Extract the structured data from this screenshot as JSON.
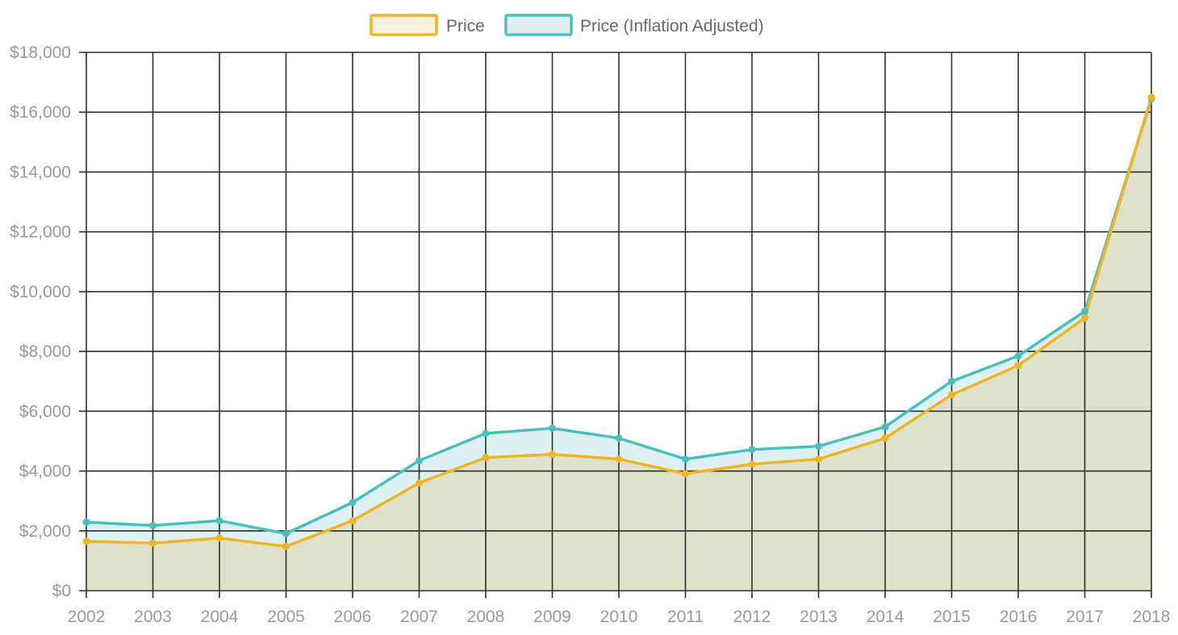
{
  "colors": {
    "price": "#f0b428",
    "price_fill": "#fbf3d9",
    "price_area": "#dde3c8",
    "inflation": "#4bbfbd",
    "inflation_fill": "#ddf1f2",
    "grid": "#2f2f2f",
    "tick_text": "#9a9a9a",
    "legend_text": "#5f6b6a"
  },
  "chart_data": {
    "type": "line",
    "title": "",
    "xlabel": "",
    "ylabel": "",
    "x": [
      "2002",
      "2003",
      "2004",
      "2005",
      "2006",
      "2007",
      "2008",
      "2009",
      "2010",
      "2011",
      "2012",
      "2013",
      "2014",
      "2015",
      "2016",
      "2017",
      "2018"
    ],
    "ylim": [
      0,
      18000
    ],
    "yticks": [
      0,
      2000,
      4000,
      6000,
      8000,
      10000,
      12000,
      14000,
      16000,
      18000
    ],
    "ytick_labels": [
      "$0",
      "$2,000",
      "$4,000",
      "$6,000",
      "$8,000",
      "$10,000",
      "$12,000",
      "$14,000",
      "$16,000",
      "$18,000"
    ],
    "grid": true,
    "legend_position": "top-center",
    "series": [
      {
        "name": "Price",
        "color": "#f0b428",
        "values": [
          1650,
          1590,
          1760,
          1480,
          2340,
          3600,
          4450,
          4560,
          4400,
          3910,
          4230,
          4400,
          5100,
          6550,
          7530,
          9120,
          16500
        ]
      },
      {
        "name": "Price (Inflation Adjusted)",
        "color": "#4bbfbd",
        "values": [
          2290,
          2180,
          2340,
          1910,
          2950,
          4350,
          5260,
          5430,
          5100,
          4400,
          4720,
          4830,
          5480,
          7000,
          7850,
          9340,
          16450
        ]
      }
    ]
  }
}
